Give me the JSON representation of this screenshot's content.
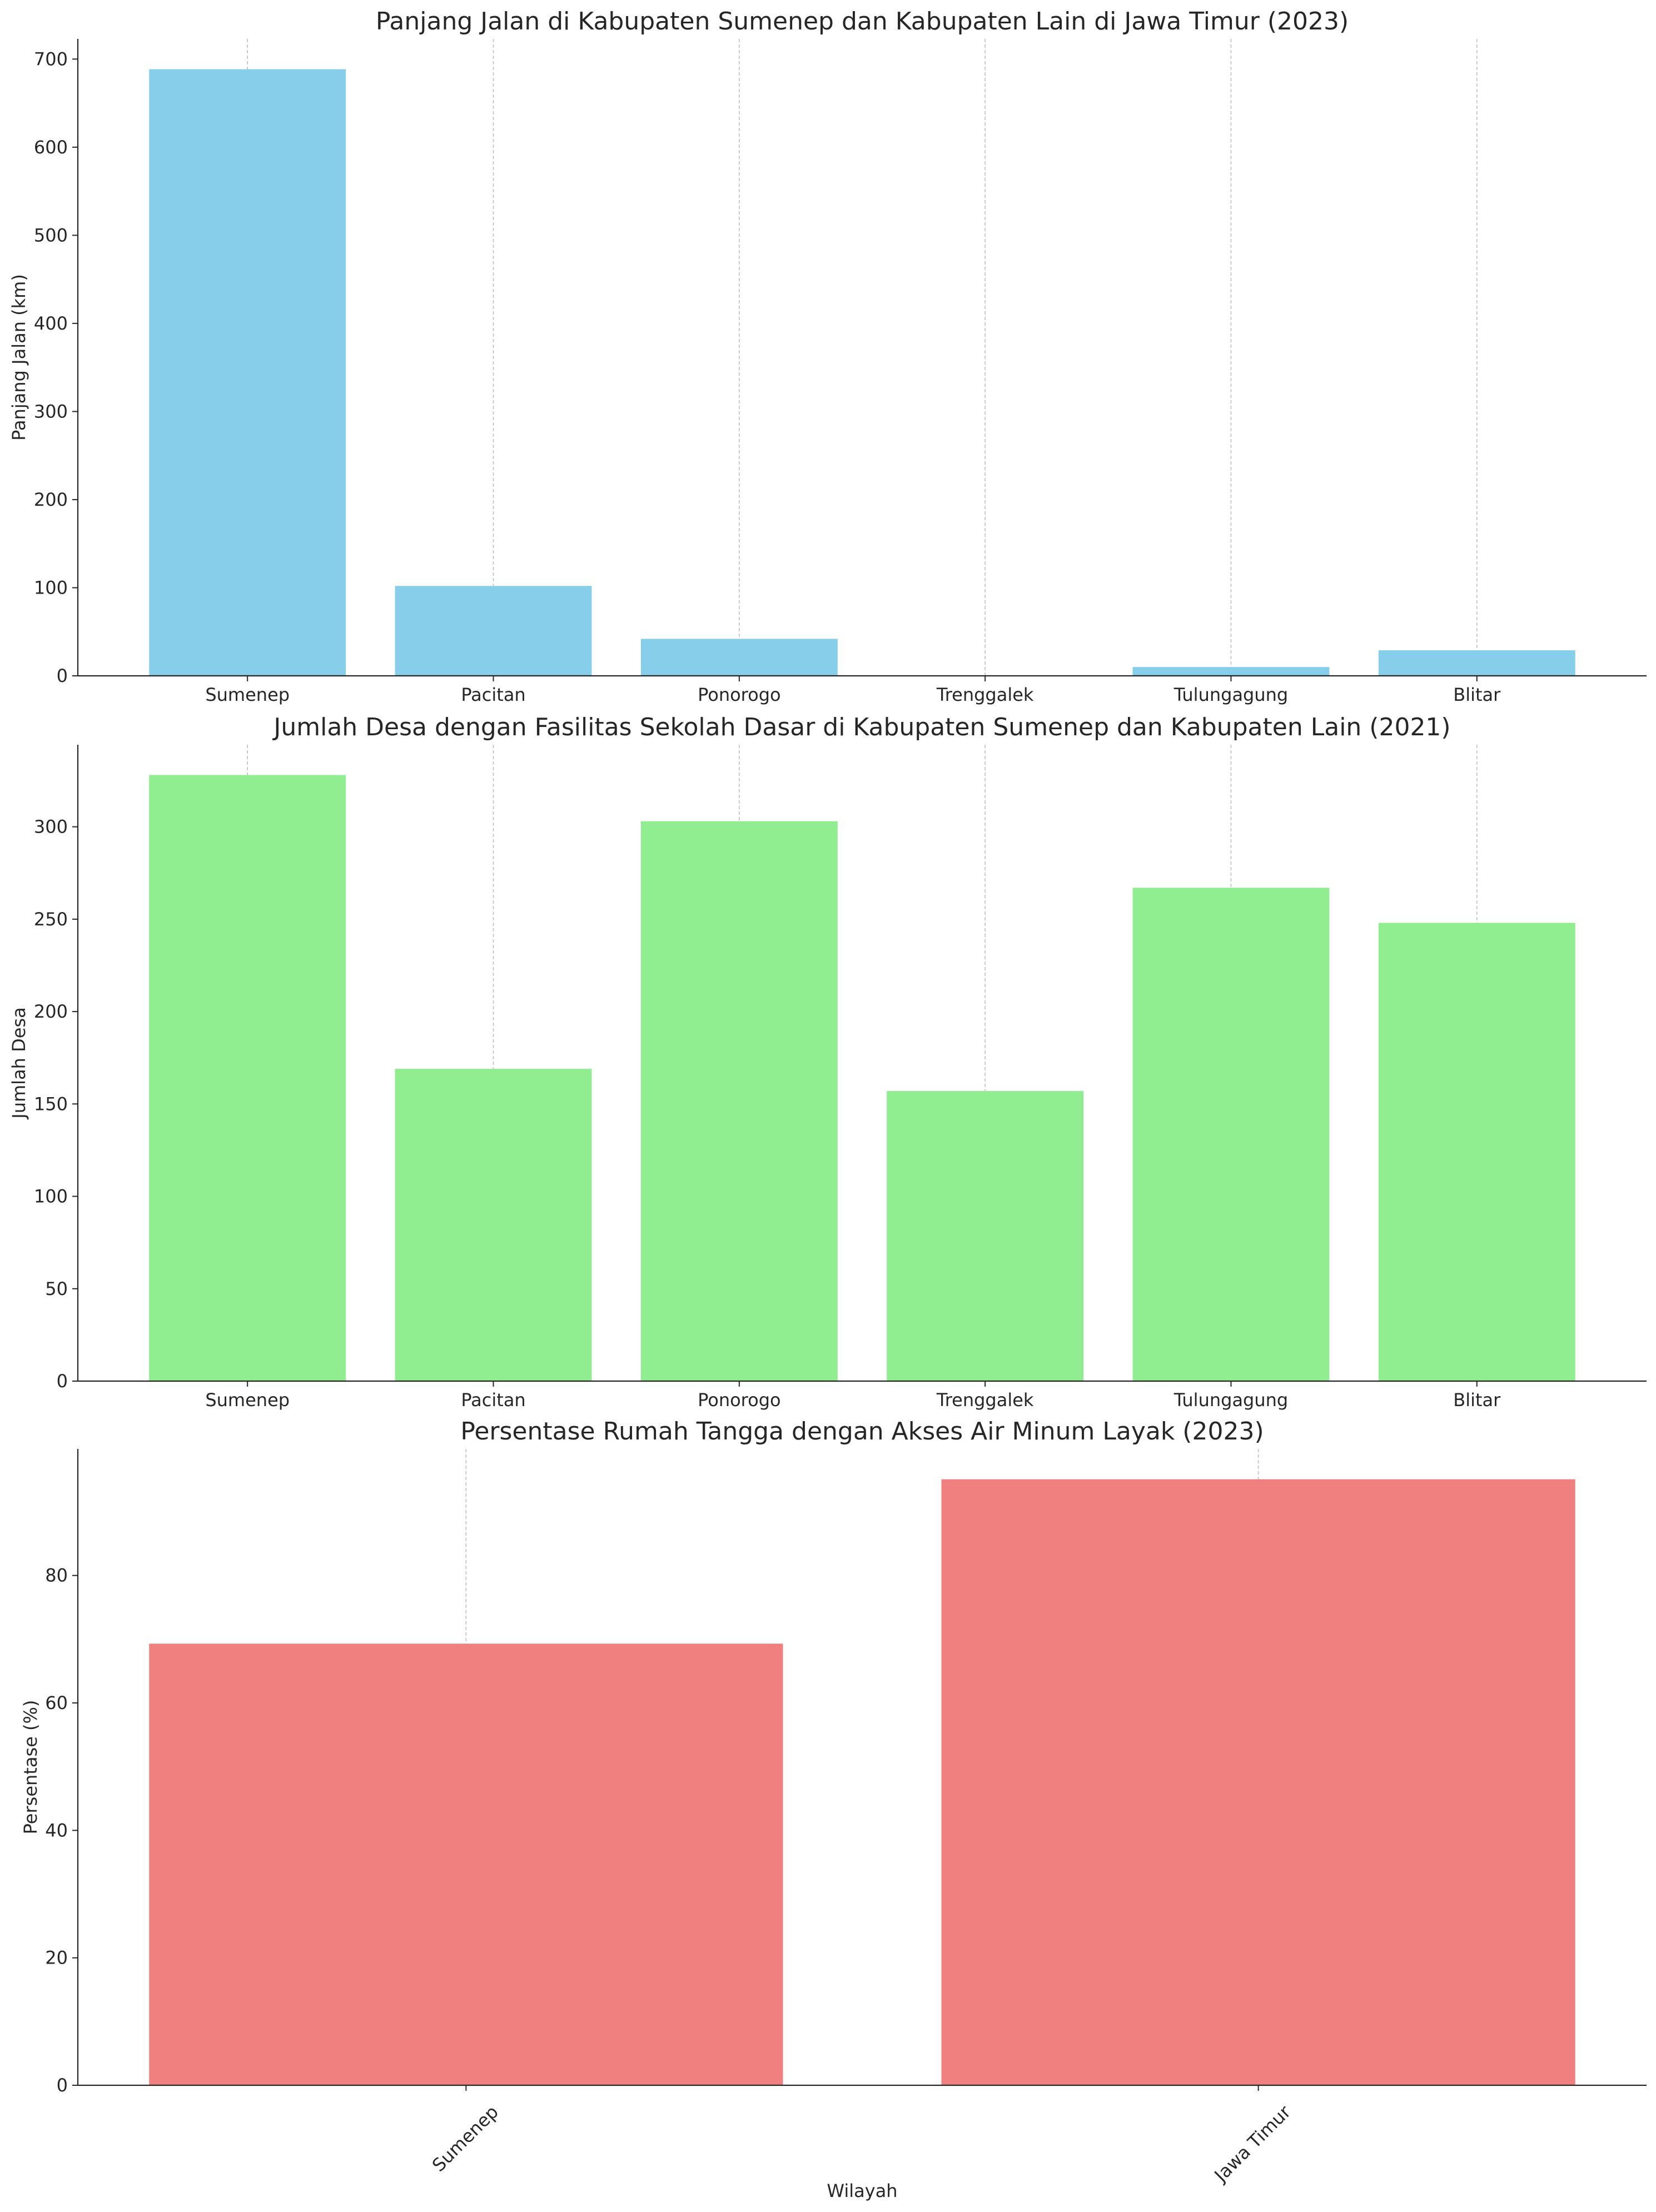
{
  "chart_data": [
    {
      "type": "bar",
      "title": "Panjang Jalan di Kabupaten Sumenep dan Kabupaten Lain di Jawa Timur (2023)",
      "xlabel": "",
      "ylabel": "Panjang Jalan (km)",
      "categories": [
        "Sumenep",
        "Pacitan",
        "Ponorogo",
        "Trenggalek",
        "Tulungagung",
        "Blitar"
      ],
      "values": [
        688.5,
        102,
        42,
        0,
        10,
        29
      ],
      "ylim": [
        0,
        722.9
      ],
      "yticks": [
        0,
        100,
        200,
        300,
        400,
        500,
        600,
        700
      ],
      "color": "#87ceeb",
      "grid": "x"
    },
    {
      "type": "bar",
      "title": "Jumlah Desa dengan Fasilitas Sekolah Dasar di Kabupaten Sumenep dan Kabupaten Lain (2021)",
      "xlabel": "",
      "ylabel": "Jumlah Desa",
      "categories": [
        "Sumenep",
        "Pacitan",
        "Ponorogo",
        "Trenggalek",
        "Tulungagung",
        "Blitar"
      ],
      "values": [
        328,
        169,
        303,
        157,
        267,
        248
      ],
      "ylim": [
        0,
        344.4
      ],
      "yticks": [
        0,
        50,
        100,
        150,
        200,
        250,
        300
      ],
      "color": "#90ee90",
      "grid": "x"
    },
    {
      "type": "bar",
      "title": "Persentase Rumah Tangga dengan Akses Air Minum Layak (2023)",
      "xlabel": "Wilayah",
      "ylabel": "Persentase (%)",
      "categories": [
        "Sumenep",
        "Jawa Timur"
      ],
      "values": [
        69.3,
        95.1
      ],
      "ylim": [
        0,
        99.86
      ],
      "yticks": [
        0,
        20,
        40,
        60,
        80
      ],
      "color": "#f08080",
      "grid": "x",
      "rotate_xticks": true
    }
  ]
}
